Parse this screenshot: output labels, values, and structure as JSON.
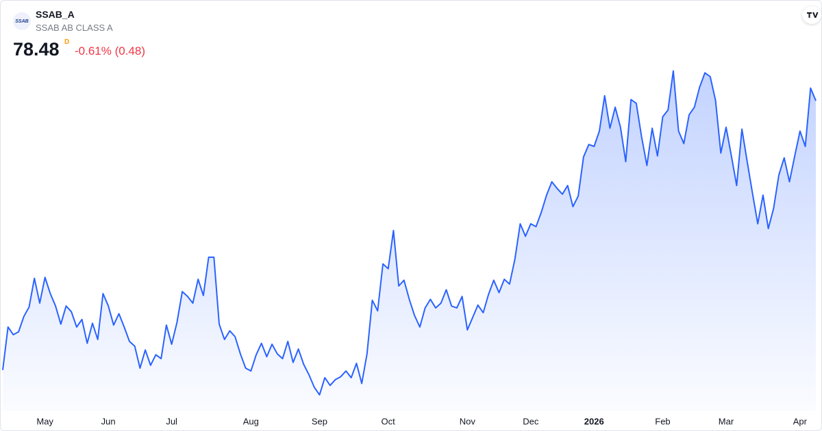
{
  "header": {
    "logo": "SSAB",
    "symbol": "SSAB_A",
    "name": "SSAB AB CLASS A",
    "price": 78.48,
    "interval": "D",
    "change": "-0.61% (0.48)"
  },
  "chart_data": {
    "type": "area",
    "color": "#2962ff",
    "xlim": [
      0,
      154
    ],
    "ylim": [
      46,
      82.5
    ],
    "xticks": [
      {
        "value": 8,
        "label": "May"
      },
      {
        "value": 20,
        "label": "Jun"
      },
      {
        "value": 32,
        "label": "Jul"
      },
      {
        "value": 47,
        "label": "Aug"
      },
      {
        "value": 60,
        "label": "Sep"
      },
      {
        "value": 73,
        "label": "Oct"
      },
      {
        "value": 88,
        "label": "Nov"
      },
      {
        "value": 100,
        "label": "Dec"
      },
      {
        "value": 112,
        "label": "2026"
      },
      {
        "value": 125,
        "label": "Feb"
      },
      {
        "value": 137,
        "label": "Mar"
      },
      {
        "value": 151,
        "label": "Apr"
      }
    ],
    "values": [
      50.3,
      54.8,
      54.0,
      54.3,
      55.9,
      56.9,
      59.9,
      57.3,
      60.0,
      58.3,
      57.0,
      55.1,
      57.0,
      56.4,
      54.8,
      55.6,
      53.1,
      55.2,
      53.5,
      58.3,
      57.0,
      55.0,
      56.2,
      54.8,
      53.3,
      52.8,
      50.5,
      52.4,
      50.8,
      51.9,
      51.5,
      55.0,
      53.0,
      55.3,
      58.5,
      58.0,
      57.3,
      59.8,
      58.1,
      62.1,
      62.1,
      55.1,
      53.5,
      54.4,
      53.8,
      52.0,
      50.5,
      50.2,
      51.9,
      53.1,
      51.7,
      53.0,
      52.0,
      51.5,
      53.3,
      51.1,
      52.5,
      50.9,
      49.8,
      48.5,
      47.7,
      49.5,
      48.7,
      49.3,
      49.6,
      50.2,
      49.5,
      51.0,
      48.9,
      52.0,
      57.6,
      56.5,
      61.4,
      60.9,
      64.9,
      59.1,
      59.7,
      57.7,
      56.0,
      54.8,
      56.8,
      57.7,
      56.8,
      57.3,
      58.7,
      57.0,
      56.8,
      58.0,
      54.5,
      55.8,
      57.1,
      56.3,
      58.2,
      59.7,
      58.4,
      59.8,
      59.3,
      61.9,
      65.6,
      64.3,
      65.6,
      65.3,
      66.8,
      68.6,
      70.0,
      69.3,
      68.7,
      69.6,
      67.4,
      68.5,
      72.6,
      73.9,
      73.7,
      75.3,
      79.0,
      75.6,
      77.8,
      75.7,
      72.1,
      78.6,
      78.2,
      74.7,
      71.7,
      75.6,
      72.7,
      76.8,
      77.5,
      81.6,
      75.3,
      74.0,
      77.0,
      77.8,
      79.9,
      81.4,
      81.0,
      78.5,
      73.0,
      75.7,
      72.7,
      69.6,
      75.5,
      72.1,
      68.8,
      65.6,
      68.6,
      65.1,
      67.2,
      70.7,
      72.5,
      70.0,
      72.7,
      75.3,
      73.7,
      79.8,
      78.48
    ]
  }
}
